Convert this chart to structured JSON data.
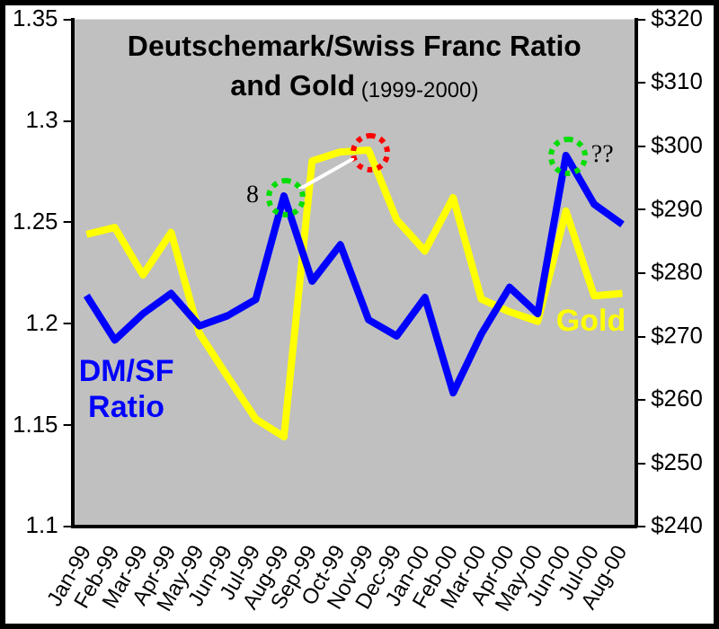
{
  "chart_data": {
    "type": "line",
    "title": "Deutschemark/Swiss Franc Ratio and Gold",
    "subtitle": "(1999-2000)",
    "categories": [
      "Jan-99",
      "Feb-99",
      "Mar-99",
      "Apr-99",
      "May-99",
      "Jun-99",
      "Jul-99",
      "Aug-99",
      "Sep-99",
      "Oct-99",
      "Nov-99",
      "Dec-99",
      "Jan-00",
      "Feb-00",
      "Mar-00",
      "Apr-00",
      "May-00",
      "Jun-00",
      "Jul-00",
      "Aug-00"
    ],
    "series": [
      {
        "name": "DM/SF Ratio",
        "color": "#0000ff",
        "values": [
          1.214,
          1.192,
          1.205,
          1.215,
          1.199,
          1.204,
          1.212,
          1.263,
          1.221,
          1.239,
          1.202,
          1.194,
          1.213,
          1.166,
          1.195,
          1.218,
          1.205,
          1.283,
          1.259,
          1.249
        ]
      },
      {
        "name": "Gold",
        "color": "#ffff00",
        "axis": "y2",
        "values": [
          286.1,
          287.2,
          279.7,
          286.4,
          270.5,
          263.7,
          257,
          254.2,
          297.7,
          299.1,
          299.4,
          288.4,
          283.5,
          291.9,
          275.9,
          273.9,
          272.4,
          289.8,
          276.4,
          276.8
        ]
      }
    ],
    "ylim": [
      1.1,
      1.35
    ],
    "yticks": [
      1.1,
      1.15,
      1.2,
      1.25,
      1.3,
      1.35
    ],
    "y2lim": [
      240,
      320
    ],
    "y2ticks": [
      {
        "value": 240,
        "label": "$240"
      },
      {
        "value": 250,
        "label": "$250"
      },
      {
        "value": 260,
        "label": "$260"
      },
      {
        "value": 270,
        "label": "$270"
      },
      {
        "value": 280,
        "label": "$280"
      },
      {
        "value": 290,
        "label": "$290"
      },
      {
        "value": 300,
        "label": "$300"
      },
      {
        "value": 310,
        "label": "$310"
      },
      {
        "value": 320,
        "label": "$320"
      }
    ],
    "annotations": [
      {
        "text": "8",
        "x": "Aug-99",
        "y": 1.263
      },
      {
        "text": "??",
        "x": "Jun-00",
        "y": 1.283
      }
    ],
    "grid": false,
    "legend": false,
    "marker": "none",
    "line_style": "solid"
  }
}
